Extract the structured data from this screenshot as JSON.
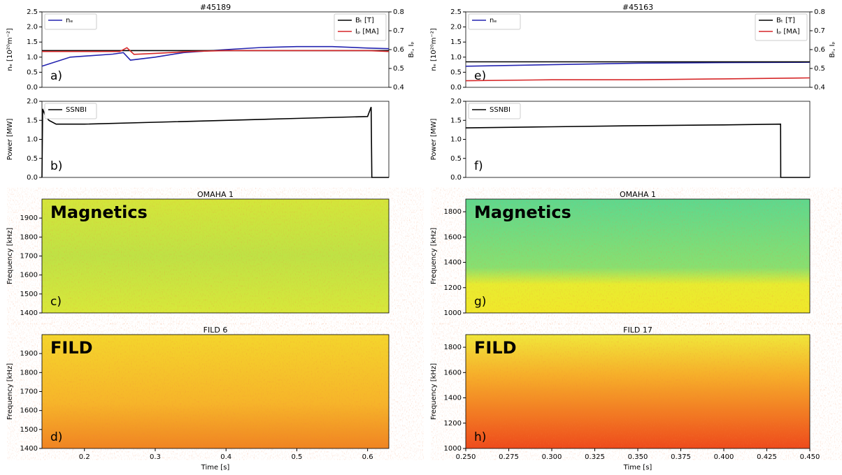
{
  "chart_data": [
    {
      "type": "line",
      "title": "#45189",
      "panel_label": "a)",
      "ylabel": "nₑ [10²⁰m⁻²]",
      "y2label": "Bₜ, Iₚ",
      "xlim": [
        0.14,
        0.63
      ],
      "ylim": [
        0,
        2.5
      ],
      "yticks": [
        {
          "value": 0,
          "label": "0.0"
        },
        0.5,
        {
          "value": 1,
          "label": "1.0"
        },
        1.5,
        {
          "value": 2,
          "label": "2.0"
        },
        2.5
      ],
      "y2lim": [
        0.4,
        0.8
      ],
      "y2ticks": [
        0.4,
        0.5,
        0.6,
        0.7,
        0.8
      ],
      "series": [
        {
          "name": "nₑ",
          "color": "#2424b0",
          "x": [
            0.14,
            0.18,
            0.24,
            0.255,
            0.265,
            0.3,
            0.34,
            0.4,
            0.45,
            0.5,
            0.55,
            0.6,
            0.63
          ],
          "values": [
            0.7,
            1.0,
            1.1,
            1.15,
            0.9,
            1.0,
            1.15,
            1.25,
            1.32,
            1.35,
            1.35,
            1.3,
            1.28
          ]
        },
        {
          "name": "Bₜ [T]",
          "color": "#000000",
          "axis": "y2",
          "x": [
            0.14,
            0.3,
            0.45,
            0.63
          ],
          "values": [
            0.595,
            0.595,
            0.595,
            0.595
          ]
        },
        {
          "name": "Iₚ [MA]",
          "color": "#d62728",
          "axis": "y2",
          "x": [
            0.14,
            0.2,
            0.25,
            0.26,
            0.27,
            0.3,
            0.35,
            0.4,
            0.5,
            0.6,
            0.63
          ],
          "values": [
            0.59,
            0.59,
            0.59,
            0.61,
            0.575,
            0.58,
            0.59,
            0.595,
            0.595,
            0.595,
            0.59
          ]
        }
      ]
    },
    {
      "type": "line",
      "panel_label": "b)",
      "ylabel": "Power [MW]",
      "xlim": [
        0.14,
        0.63
      ],
      "ylim": [
        0,
        2
      ],
      "yticks": [
        {
          "value": 0,
          "label": "0.0"
        },
        0.5,
        {
          "value": 1,
          "label": "1.0"
        },
        1.5,
        {
          "value": 2,
          "label": "2.0"
        }
      ],
      "series": [
        {
          "name": "SSNBI",
          "color": "#000000",
          "x": [
            0.14,
            0.141,
            0.145,
            0.15,
            0.16,
            0.2,
            0.3,
            0.4,
            0.5,
            0.6,
            0.605,
            0.606,
            0.63
          ],
          "values": [
            0,
            1.8,
            1.6,
            1.5,
            1.4,
            1.4,
            1.45,
            1.5,
            1.55,
            1.6,
            1.85,
            0,
            0
          ]
        }
      ]
    },
    {
      "type": "spectrogram",
      "title": "OMAHA 1",
      "panel_label": "c)",
      "annotation": "Magnetics",
      "ylabel": "Frequency [kHz]",
      "colormap": "magnetics",
      "xlim": [
        0.14,
        0.63
      ],
      "ylim": [
        1400,
        2000
      ],
      "yticks": [
        1400,
        1500,
        1600,
        1700,
        1800,
        1900
      ]
    },
    {
      "type": "spectrogram",
      "title": "FILD 6",
      "panel_label": "d)",
      "annotation": "FILD",
      "ylabel": "Frequency [kHz]",
      "xlabel": "Time [s]",
      "colormap": "fild",
      "xlim": [
        0.14,
        0.63
      ],
      "ylim": [
        1400,
        2000
      ],
      "yticks": [
        1400,
        1500,
        1600,
        1700,
        1800,
        1900
      ],
      "xticks": [
        0.2,
        0.3,
        0.4,
        0.5,
        0.6
      ]
    },
    {
      "type": "line",
      "title": "#45163",
      "panel_label": "e)",
      "ylabel": "nₑ [10²⁰m⁻²]",
      "y2label": "Bₜ, Iₚ",
      "xlim": [
        0.25,
        0.45
      ],
      "ylim": [
        0,
        2.5
      ],
      "yticks": [
        {
          "value": 0,
          "label": "0.0"
        },
        0.5,
        {
          "value": 1,
          "label": "1.0"
        },
        1.5,
        {
          "value": 2,
          "label": "2.0"
        },
        2.5
      ],
      "y2lim": [
        0.4,
        0.8
      ],
      "y2ticks": [
        0.4,
        0.5,
        0.6,
        0.7,
        0.8
      ],
      "series": [
        {
          "name": "nₑ",
          "color": "#2424b0",
          "x": [
            0.25,
            0.3,
            0.35,
            0.4,
            0.45
          ],
          "values": [
            0.7,
            0.75,
            0.8,
            0.82,
            0.83
          ]
        },
        {
          "name": "Bₜ [T]",
          "color": "#000000",
          "axis": "y2",
          "x": [
            0.25,
            0.35,
            0.45
          ],
          "values": [
            0.535,
            0.535,
            0.535
          ]
        },
        {
          "name": "Iₚ [MA]",
          "color": "#d62728",
          "axis": "y2",
          "x": [
            0.25,
            0.3,
            0.35,
            0.4,
            0.45
          ],
          "values": [
            0.435,
            0.44,
            0.44,
            0.445,
            0.45
          ]
        }
      ]
    },
    {
      "type": "line",
      "panel_label": "f)",
      "ylabel": "Power [MW]",
      "xlim": [
        0.25,
        0.45
      ],
      "ylim": [
        0,
        2
      ],
      "yticks": [
        {
          "value": 0,
          "label": "0.0"
        },
        0.5,
        {
          "value": 1,
          "label": "1.0"
        },
        1.5,
        {
          "value": 2,
          "label": "2.0"
        }
      ],
      "series": [
        {
          "name": "SSNBI",
          "color": "#000000",
          "x": [
            0.25,
            0.3,
            0.35,
            0.4,
            0.433,
            0.4331,
            0.45
          ],
          "values": [
            1.3,
            1.33,
            1.36,
            1.38,
            1.4,
            0,
            0
          ]
        }
      ]
    },
    {
      "type": "spectrogram",
      "title": "OMAHA 1",
      "panel_label": "g)",
      "annotation": "Magnetics",
      "ylabel": "Frequency [kHz]",
      "colormap": "magnetics2",
      "xlim": [
        0.25,
        0.45
      ],
      "ylim": [
        1000,
        1900
      ],
      "yticks": [
        1000,
        1200,
        1400,
        1600,
        1800
      ]
    },
    {
      "type": "spectrogram",
      "title": "FILD 17",
      "panel_label": "h)",
      "annotation": "FILD",
      "ylabel": "Frequency [kHz]",
      "xlabel": "Time [s]",
      "colormap": "fild2",
      "xlim": [
        0.25,
        0.45
      ],
      "ylim": [
        1000,
        1900
      ],
      "yticks": [
        1000,
        1200,
        1400,
        1600,
        1800
      ],
      "xticks": [
        {
          "value": 0.25,
          "label": "0.250"
        },
        0.275,
        {
          "value": 0.3,
          "label": "0.300"
        },
        0.325,
        {
          "value": 0.35,
          "label": "0.350"
        },
        0.375,
        {
          "value": 0.4,
          "label": "0.400"
        },
        0.425,
        {
          "value": 0.45,
          "label": "0.450"
        }
      ]
    }
  ]
}
